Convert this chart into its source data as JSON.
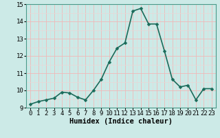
{
  "x": [
    0,
    1,
    2,
    3,
    4,
    5,
    6,
    7,
    8,
    9,
    10,
    11,
    12,
    13,
    14,
    15,
    16,
    17,
    18,
    19,
    20,
    21,
    22,
    23
  ],
  "y": [
    9.2,
    9.35,
    9.45,
    9.55,
    9.9,
    9.85,
    9.6,
    9.45,
    10.0,
    10.65,
    11.65,
    12.45,
    12.75,
    14.6,
    14.75,
    13.85,
    13.85,
    12.3,
    10.65,
    10.2,
    10.3,
    9.45,
    10.1,
    10.1
  ],
  "line_color": "#1a6b5a",
  "marker": "D",
  "marker_size": 2.5,
  "background_color": "#cceae7",
  "grid_color_major": "#f0b8b8",
  "grid_color_minor": "#e8d8d8",
  "xlabel": "Humidex (Indice chaleur)",
  "xlim": [
    -0.5,
    23.5
  ],
  "ylim": [
    9.0,
    15.0
  ],
  "yticks": [
    9,
    10,
    11,
    12,
    13,
    14,
    15
  ],
  "xticks": [
    0,
    1,
    2,
    3,
    4,
    5,
    6,
    7,
    8,
    9,
    10,
    11,
    12,
    13,
    14,
    15,
    16,
    17,
    18,
    19,
    20,
    21,
    22,
    23
  ],
  "xlabel_fontsize": 7.5,
  "tick_fontsize": 6.5,
  "line_width": 1.2
}
